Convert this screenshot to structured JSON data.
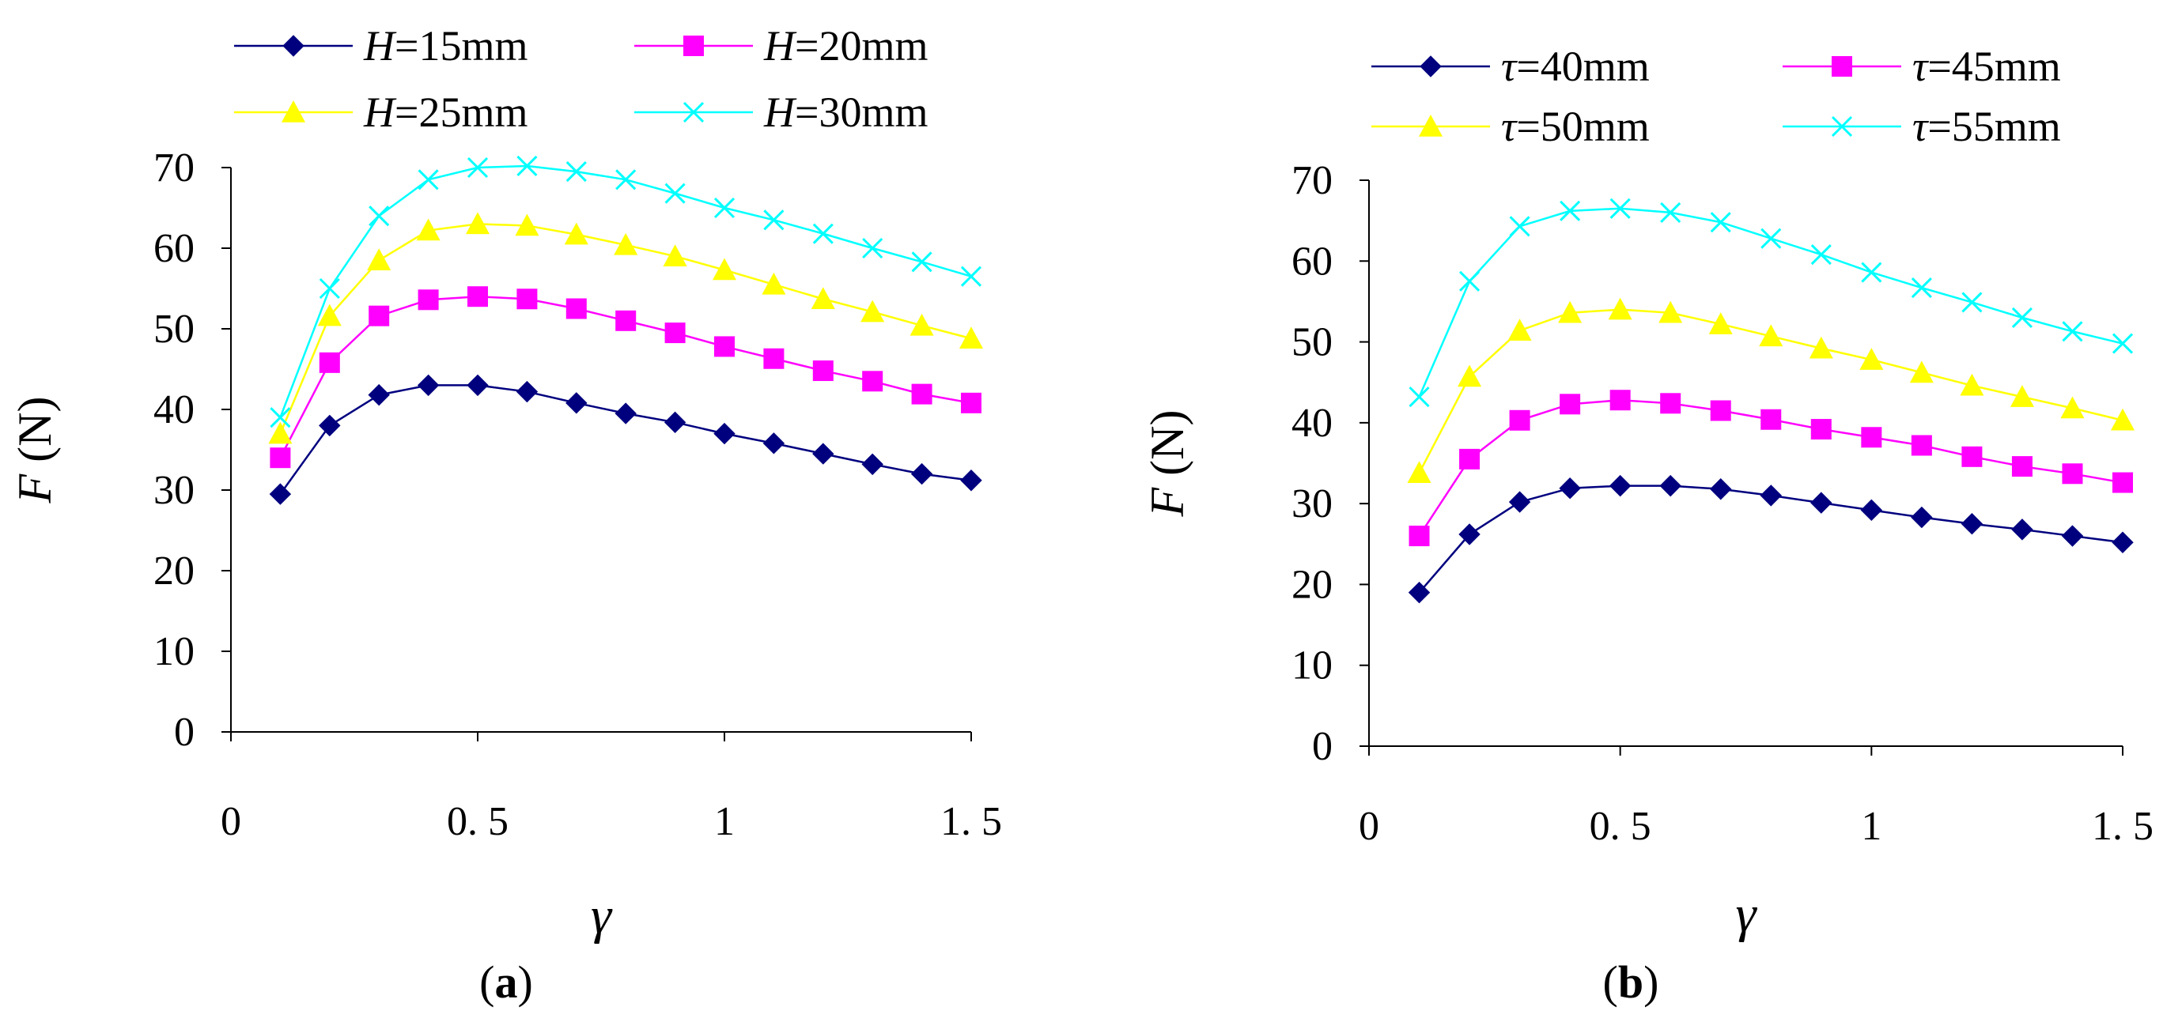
{
  "chart_data": [
    {
      "type": "line",
      "panel_label": "a",
      "xlabel": "γ",
      "ylabel_var": "F",
      "ylabel_unit": " (N)",
      "xlim": [
        0,
        1.5
      ],
      "ylim": [
        0,
        70
      ],
      "xticks": [
        0,
        0.5,
        1,
        1.5
      ],
      "xtick_labels": [
        "0",
        "0. 5",
        "1",
        "1. 5"
      ],
      "yticks": [
        0,
        10,
        20,
        30,
        40,
        50,
        60,
        70
      ],
      "legend_position": "top",
      "x": [
        0.1,
        0.2,
        0.3,
        0.4,
        0.5,
        0.6,
        0.7,
        0.8,
        0.9,
        1.0,
        1.1,
        1.2,
        1.3,
        1.4,
        1.5
      ],
      "series": [
        {
          "var": "H",
          "rest": "=15mm",
          "color": "#00007f",
          "marker": "diamond",
          "values": [
            29.5,
            38,
            41.8,
            43,
            43,
            42.2,
            40.8,
            39.5,
            38.4,
            37,
            35.8,
            34.5,
            33.2,
            32,
            31.2
          ]
        },
        {
          "var": "H",
          "rest": "=20mm",
          "color": "#ff00ff",
          "marker": "square",
          "values": [
            34,
            45.8,
            51.6,
            53.6,
            54,
            53.7,
            52.5,
            51,
            49.5,
            47.8,
            46.3,
            44.8,
            43.5,
            41.9,
            40.8
          ]
        },
        {
          "var": "H",
          "rest": "=25mm",
          "color": "#ffff00",
          "marker": "triangle",
          "values": [
            37,
            51.6,
            58.5,
            62.2,
            63,
            62.8,
            61.7,
            60.4,
            59,
            57.3,
            55.5,
            53.7,
            52.1,
            50.4,
            48.8
          ]
        },
        {
          "var": "H",
          "rest": "=30mm",
          "color": "#00ffff",
          "marker": "x",
          "values": [
            39,
            55,
            64,
            68.5,
            70,
            70.2,
            69.5,
            68.5,
            66.8,
            65,
            63.5,
            61.8,
            60,
            58.3,
            56.5
          ]
        }
      ]
    },
    {
      "type": "line",
      "panel_label": "b",
      "xlabel": "γ",
      "ylabel_var": "F",
      "ylabel_unit": " (N)",
      "xlim": [
        0,
        1.5
      ],
      "ylim": [
        0,
        70
      ],
      "xticks": [
        0,
        0.5,
        1,
        1.5
      ],
      "xtick_labels": [
        "0",
        "0. 5",
        "1",
        "1. 5"
      ],
      "yticks": [
        0,
        10,
        20,
        30,
        40,
        50,
        60,
        70
      ],
      "legend_position": "top",
      "x": [
        0.1,
        0.2,
        0.3,
        0.4,
        0.5,
        0.6,
        0.7,
        0.8,
        0.9,
        1.0,
        1.1,
        1.2,
        1.3,
        1.4,
        1.5
      ],
      "series": [
        {
          "var": "τ",
          "rest": "=40mm",
          "color": "#00007f",
          "marker": "diamond",
          "values": [
            19,
            26.2,
            30.2,
            31.9,
            32.2,
            32.2,
            31.8,
            31,
            30.1,
            29.2,
            28.3,
            27.5,
            26.8,
            26,
            25.2
          ]
        },
        {
          "var": "τ",
          "rest": "=45mm",
          "color": "#ff00ff",
          "marker": "square",
          "values": [
            26,
            35.5,
            40.3,
            42.3,
            42.8,
            42.4,
            41.5,
            40.4,
            39.2,
            38.2,
            37.2,
            35.8,
            34.6,
            33.7,
            32.6
          ]
        },
        {
          "var": "τ",
          "rest": "=50mm",
          "color": "#ffff00",
          "marker": "triangle",
          "values": [
            33.8,
            45.7,
            51.4,
            53.6,
            54,
            53.6,
            52.2,
            50.7,
            49.2,
            47.8,
            46.2,
            44.6,
            43.2,
            41.8,
            40.3
          ]
        },
        {
          "var": "τ",
          "rest": "=55mm",
          "color": "#00ffff",
          "marker": "x",
          "values": [
            43.2,
            57.5,
            64.3,
            66.2,
            66.5,
            66,
            64.8,
            62.8,
            60.8,
            58.6,
            56.7,
            54.9,
            53,
            51.3,
            49.8
          ]
        }
      ]
    }
  ]
}
